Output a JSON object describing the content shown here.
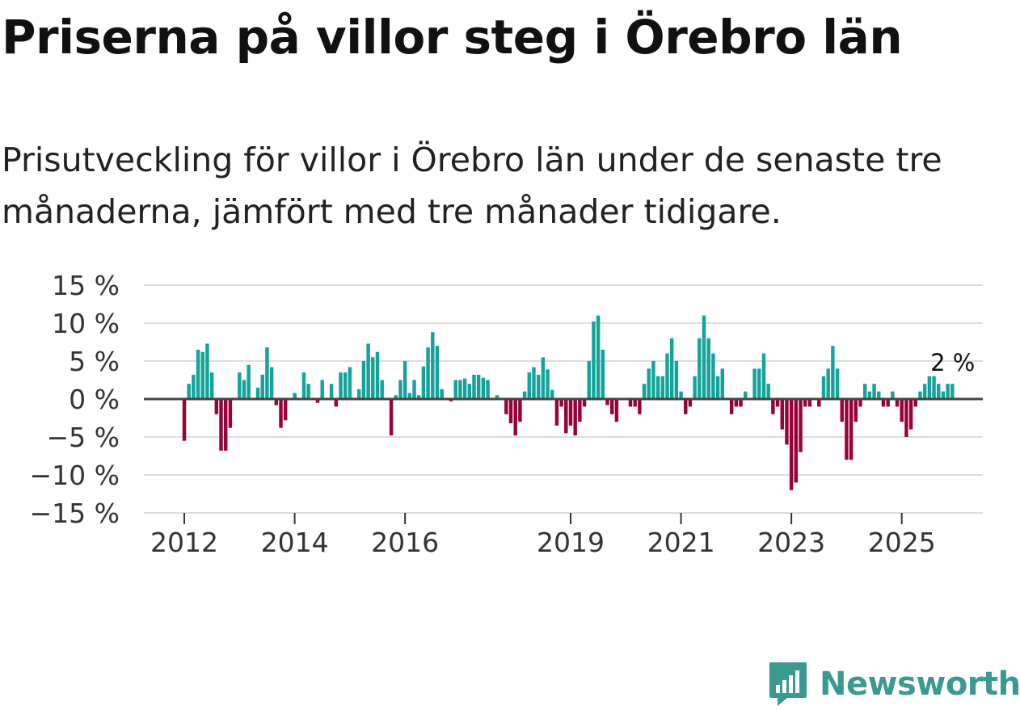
{
  "title": "Priserna på villor steg i Örebro län",
  "subtitle": "Prisutveckling för villor i Örebro län under de senaste tre månaderna, jämfört med tre månader tidigare.",
  "brand": "Newsworthy",
  "colors": {
    "positive": "#13a39a",
    "negative": "#9a0039",
    "zero_line": "#444444",
    "grid": "#dddddd",
    "brand": "#3a9a92"
  },
  "chart_data": {
    "type": "bar",
    "title": "Priserna på villor steg i Örebro län",
    "xlabel": "",
    "ylabel": "",
    "ylim": [
      -15,
      15
    ],
    "grid": true,
    "y_ticks": [
      15,
      10,
      5,
      0,
      -5,
      -10,
      -15
    ],
    "y_tick_labels": [
      "15 %",
      "10 %",
      "5 %",
      "0 %",
      "−5 %",
      "−10 %",
      "−15 %"
    ],
    "x_ticks": [
      2012,
      2014,
      2016,
      2019,
      2021,
      2023,
      2025
    ],
    "x_tick_labels": [
      "2012",
      "2014",
      "2016",
      "2019",
      "2021",
      "2023",
      "2025"
    ],
    "start": {
      "year": 2012,
      "month": 1
    },
    "end_label": "2 %",
    "values": [
      -5.5,
      2.0,
      3.2,
      6.5,
      6.2,
      7.3,
      3.5,
      -2.0,
      -6.8,
      -6.8,
      -3.8,
      0.0,
      3.5,
      2.5,
      4.5,
      0.0,
      1.5,
      3.2,
      6.8,
      4.2,
      -0.8,
      -3.8,
      -2.8,
      0.0,
      0.8,
      0.0,
      3.5,
      2.0,
      0.0,
      -0.5,
      2.5,
      0.0,
      2.0,
      -1.0,
      3.5,
      3.5,
      4.2,
      0.0,
      1.3,
      5.0,
      7.3,
      5.5,
      6.2,
      2.5,
      0.0,
      -4.8,
      0.5,
      2.5,
      5.0,
      0.8,
      2.5,
      0.5,
      4.3,
      6.8,
      8.8,
      7.0,
      1.3,
      0.0,
      -0.3,
      2.5,
      2.5,
      2.7,
      2.0,
      3.2,
      3.2,
      2.8,
      2.5,
      0.0,
      0.5,
      0.0,
      -2.0,
      -3.2,
      -4.8,
      -3.0,
      1.0,
      3.5,
      4.2,
      3.2,
      5.5,
      3.9,
      1.2,
      -3.5,
      -1.0,
      -4.5,
      -3.5,
      -4.8,
      -3.0,
      -1.0,
      5.0,
      10.2,
      11.0,
      6.5,
      -0.8,
      -2.0,
      -3.0,
      0.0,
      0.0,
      -1.0,
      -1.0,
      -2.0,
      2.0,
      4.0,
      5.0,
      3.0,
      3.0,
      6.0,
      8.0,
      5.0,
      1.0,
      -2.0,
      -1.0,
      3.0,
      8.0,
      11.0,
      8.0,
      6.0,
      3.0,
      4.0,
      0.0,
      -2.0,
      -1.0,
      -1.0,
      1.0,
      0.0,
      4.0,
      4.0,
      6.0,
      2.0,
      -2.0,
      -1.0,
      -4.0,
      -6.0,
      -12.0,
      -11.0,
      -7.0,
      -1.0,
      -1.0,
      0.0,
      -1.0,
      3.0,
      4.0,
      7.0,
      4.0,
      -3.0,
      -8.0,
      -8.0,
      -3.0,
      -1.0,
      2.0,
      1.0,
      2.0,
      1.0,
      -1.0,
      -1.0,
      1.0,
      -1.0,
      -3.0,
      -5.0,
      -4.0,
      -1.0,
      1.0,
      2.0,
      3.0,
      3.0,
      2.0,
      1.0,
      2.0,
      2.0
    ]
  }
}
